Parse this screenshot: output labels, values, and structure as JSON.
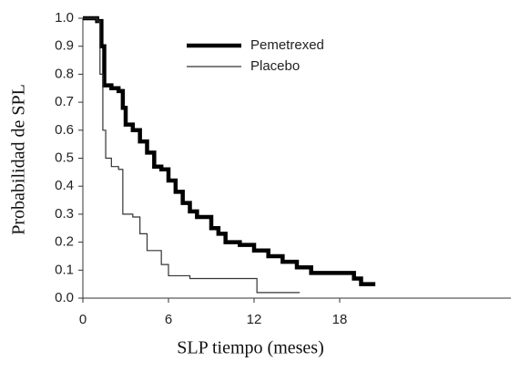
{
  "chart_data": {
    "type": "line",
    "step": true,
    "x_label": "SLP tiempo (meses)",
    "y_label": "Probabilidad de SPL",
    "xlim": [
      0,
      30
    ],
    "xticks": [
      0,
      6,
      12,
      18
    ],
    "ylim": [
      0,
      1
    ],
    "yticks": [
      {
        "value": 0,
        "label": "0.0"
      },
      0.1,
      0.2,
      0.3,
      0.4,
      0.5,
      0.6,
      0.7,
      0.8,
      0.9,
      {
        "value": 1,
        "label": "1.0"
      }
    ],
    "legend": "top-center",
    "series": [
      {
        "name": "Pemetrexed",
        "color": "#000000",
        "width": 4.5,
        "x": [
          0,
          1.0,
          1.3,
          1.5,
          2.0,
          2.5,
          2.8,
          3.0,
          3.5,
          4.0,
          4.5,
          5.0,
          5.5,
          6.0,
          6.5,
          7.0,
          7.5,
          8.0,
          9.0,
          9.5,
          10,
          11,
          12,
          13,
          14,
          15,
          16,
          18,
          19,
          19.5,
          20.5
        ],
        "values": [
          1.0,
          0.99,
          0.9,
          0.76,
          0.75,
          0.74,
          0.68,
          0.62,
          0.6,
          0.56,
          0.52,
          0.47,
          0.46,
          0.42,
          0.38,
          0.34,
          0.31,
          0.29,
          0.25,
          0.23,
          0.2,
          0.19,
          0.17,
          0.15,
          0.13,
          0.11,
          0.09,
          0.09,
          0.07,
          0.05,
          0.05
        ]
      },
      {
        "name": "Placebo",
        "color": "#333333",
        "width": 1.2,
        "x": [
          0,
          1.0,
          1.2,
          1.4,
          1.6,
          2.0,
          2.5,
          2.8,
          3.5,
          4.0,
          4.5,
          5.5,
          6.0,
          7.5,
          12,
          12.2,
          15.2
        ],
        "values": [
          1.0,
          0.99,
          0.8,
          0.6,
          0.5,
          0.47,
          0.46,
          0.3,
          0.29,
          0.23,
          0.17,
          0.12,
          0.08,
          0.07,
          0.07,
          0.02,
          0.02
        ]
      }
    ]
  }
}
